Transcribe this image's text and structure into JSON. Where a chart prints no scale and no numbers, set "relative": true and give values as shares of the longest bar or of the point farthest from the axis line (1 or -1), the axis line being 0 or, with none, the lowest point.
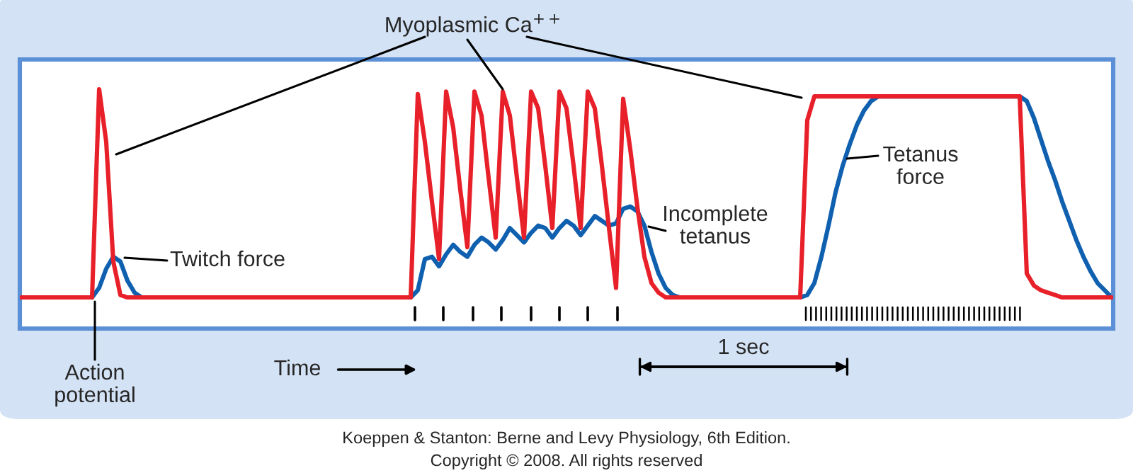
{
  "chart_data": {
    "type": "line",
    "relative": true,
    "categories": [
      null,
      null,
      null,
      null,
      null,
      null,
      null,
      null,
      null,
      null,
      null,
      null,
      null,
      null,
      null,
      null,
      null,
      null,
      null,
      null,
      null,
      null,
      null,
      null,
      null,
      null,
      null,
      null,
      null,
      null,
      null,
      null,
      null,
      null,
      null,
      null,
      null,
      null,
      null,
      null,
      null,
      null,
      null,
      null,
      null,
      null,
      null,
      null,
      null,
      null,
      null,
      null,
      null,
      null,
      null,
      null,
      null,
      null,
      null,
      null,
      null,
      null,
      null,
      null,
      null,
      null,
      null,
      null,
      null,
      null,
      null,
      null,
      null,
      null,
      null,
      null,
      null,
      null,
      null,
      null,
      null,
      null,
      null,
      null,
      null,
      null,
      null,
      null,
      null,
      null,
      null,
      null,
      null,
      null,
      null,
      null,
      null,
      null,
      null,
      null,
      null,
      null,
      null,
      null,
      null,
      null,
      null,
      null,
      null,
      null,
      null,
      null,
      null,
      null,
      null,
      null,
      null,
      null,
      null,
      null,
      null,
      null,
      null,
      null,
      null,
      null,
      null,
      null,
      null,
      null,
      null,
      null,
      null,
      null,
      null,
      null,
      null,
      null,
      null,
      null,
      null,
      null,
      null,
      null,
      null,
      null,
      null,
      null,
      null,
      null,
      null,
      null,
      null,
      null,
      null
    ],
    "series": [
      {
        "color": "#e8202a",
        "values": [
          0.13,
          0.13,
          0.13,
          0.13,
          0.13,
          0.13,
          0.13,
          0.13,
          0.13,
          0.13,
          0.13,
          1.0,
          0.78,
          0.28,
          0.14,
          0.13,
          0.13,
          0.13,
          0.13,
          0.13,
          0.13,
          0.13,
          0.13,
          0.13,
          0.13,
          0.13,
          0.13,
          0.13,
          0.13,
          0.13,
          0.13,
          0.13,
          0.13,
          0.13,
          0.13,
          0.13,
          0.13,
          0.13,
          0.13,
          0.13,
          0.13,
          0.13,
          0.13,
          0.13,
          0.13,
          0.13,
          0.13,
          0.13,
          0.13,
          0.13,
          0.13,
          0.13,
          0.13,
          0.13,
          0.13,
          0.13,
          0.98,
          0.78,
          0.53,
          0.29,
          0.99,
          0.84,
          0.58,
          0.34,
          0.99,
          0.89,
          0.63,
          0.38,
          0.99,
          0.89,
          0.63,
          0.38,
          0.99,
          0.92,
          0.68,
          0.42,
          0.99,
          0.92,
          0.68,
          0.42,
          0.99,
          0.92,
          0.68,
          0.42,
          0.17,
          0.96,
          0.75,
          0.51,
          0.3,
          0.19,
          0.15,
          0.13,
          0.13,
          0.13,
          0.13,
          0.13,
          0.13,
          0.13,
          0.13,
          0.13,
          0.13,
          0.13,
          0.13,
          0.13,
          0.13,
          0.13,
          0.13,
          0.13,
          0.13,
          0.13,
          0.13,
          0.87,
          0.97,
          0.97,
          0.97,
          0.97,
          0.97,
          0.97,
          0.97,
          0.97,
          0.97,
          0.97,
          0.97,
          0.97,
          0.97,
          0.97,
          0.97,
          0.97,
          0.97,
          0.97,
          0.97,
          0.97,
          0.97,
          0.97,
          0.97,
          0.97,
          0.97,
          0.97,
          0.97,
          0.97,
          0.97,
          0.97,
          0.23,
          0.18,
          0.16,
          0.15,
          0.14,
          0.13,
          0.13,
          0.13,
          0.13,
          0.13,
          0.13,
          0.13,
          0.13
        ]
      },
      {
        "color": "#1060b0",
        "values": [
          null,
          null,
          null,
          null,
          null,
          null,
          null,
          null,
          null,
          null,
          0.13,
          0.17,
          0.25,
          0.3,
          0.28,
          0.2,
          0.15,
          0.13,
          null,
          null,
          null,
          null,
          null,
          null,
          null,
          null,
          null,
          null,
          null,
          null,
          null,
          null,
          null,
          null,
          null,
          null,
          null,
          null,
          null,
          null,
          null,
          null,
          null,
          null,
          null,
          null,
          null,
          null,
          null,
          null,
          null,
          null,
          null,
          null,
          null,
          0.13,
          0.16,
          0.29,
          0.3,
          0.26,
          0.31,
          0.35,
          0.32,
          0.3,
          0.35,
          0.38,
          0.36,
          0.33,
          0.37,
          0.42,
          0.39,
          0.36,
          0.4,
          0.43,
          0.42,
          0.38,
          0.42,
          0.45,
          0.43,
          0.39,
          0.43,
          0.47,
          0.45,
          0.43,
          0.44,
          0.5,
          0.51,
          0.49,
          0.43,
          0.32,
          0.23,
          0.17,
          0.14,
          0.13,
          null,
          null,
          null,
          null,
          null,
          null,
          null,
          null,
          null,
          null,
          null,
          null,
          null,
          null,
          null,
          null,
          0.13,
          0.14,
          0.19,
          0.3,
          0.43,
          0.57,
          0.68,
          0.77,
          0.85,
          0.91,
          0.95,
          0.97,
          null,
          null,
          null,
          null,
          null,
          null,
          null,
          null,
          null,
          null,
          null,
          null,
          null,
          null,
          null,
          null,
          null,
          null,
          null,
          0.97,
          0.95,
          0.88,
          0.79,
          0.7,
          0.62,
          0.53,
          0.45,
          0.37,
          0.3,
          0.24,
          0.19,
          0.16,
          0.13
        ]
      }
    ],
    "annotations": [
      "Myoplasmic Ca$^{++}$",
      "Twitch force",
      "Incomplete\ntetanus",
      "Tetanus\nforce",
      "Action\npotential",
      "Time",
      "1 sec",
      "Koeppen & Stanton: Berne and Levy Physiology, 6th Edition.",
      "Copyright © 2008. All rights reserved"
    ]
  }
}
